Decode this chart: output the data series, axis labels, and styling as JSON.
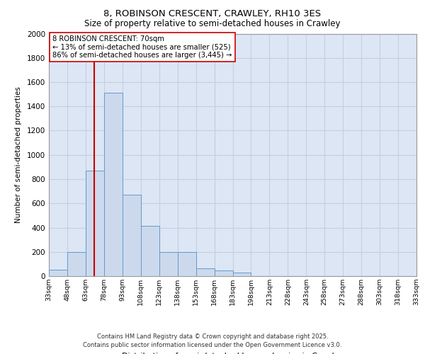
{
  "title1": "8, ROBINSON CRESCENT, CRAWLEY, RH10 3ES",
  "title2": "Size of property relative to semi-detached houses in Crawley",
  "xlabel": "Distribution of semi-detached houses by size in Crawley",
  "ylabel": "Number of semi-detached properties",
  "property_size": 70,
  "annotation_title": "8 ROBINSON CRESCENT: 70sqm",
  "annotation_line1": "← 13% of semi-detached houses are smaller (525)",
  "annotation_line2": "86% of semi-detached houses are larger (3,445) →",
  "footer1": "Contains HM Land Registry data © Crown copyright and database right 2025.",
  "footer2": "Contains public sector information licensed under the Open Government Licence v3.0.",
  "bin_edges": [
    33,
    48,
    63,
    78,
    93,
    108,
    123,
    138,
    153,
    168,
    183,
    198,
    213,
    228,
    243,
    258,
    273,
    288,
    303,
    318,
    333
  ],
  "bin_counts": [
    50,
    200,
    870,
    1510,
    670,
    415,
    200,
    200,
    65,
    45,
    28,
    0,
    0,
    0,
    0,
    0,
    0,
    0,
    0,
    0
  ],
  "bar_color": "#ccd9ed",
  "bar_edge_color": "#6699cc",
  "line_color": "#cc0000",
  "grid_color": "#c5d0e0",
  "bg_color": "#dce6f5",
  "ylim": [
    0,
    2000
  ],
  "yticks": [
    0,
    200,
    400,
    600,
    800,
    1000,
    1200,
    1400,
    1600,
    1800,
    2000
  ],
  "tick_labels": [
    "33sqm",
    "48sqm",
    "63sqm",
    "78sqm",
    "93sqm",
    "108sqm",
    "123sqm",
    "138sqm",
    "153sqm",
    "168sqm",
    "183sqm",
    "198sqm",
    "213sqm",
    "228sqm",
    "243sqm",
    "258sqm",
    "273sqm",
    "288sqm",
    "303sqm",
    "318sqm",
    "333sqm"
  ],
  "title_fontsize": 9.5,
  "subtitle_fontsize": 8.5
}
